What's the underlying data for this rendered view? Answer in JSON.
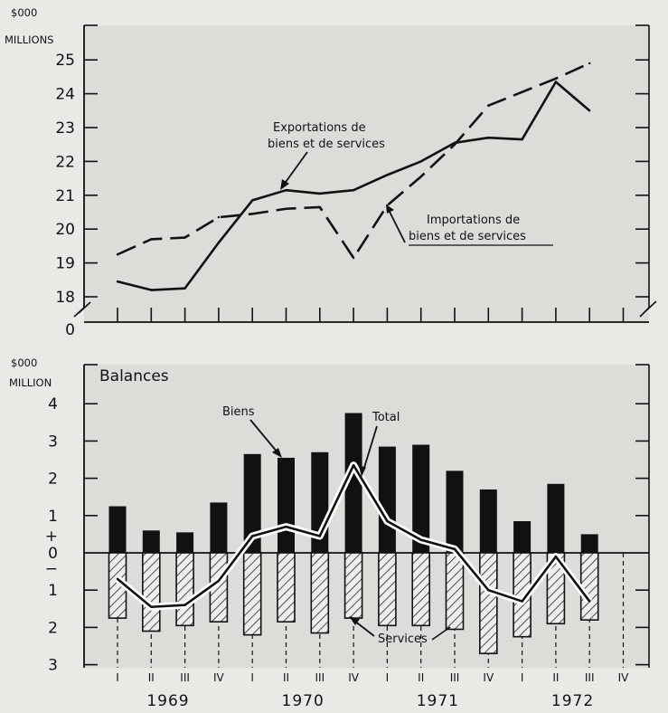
{
  "chart_data": [
    {
      "type": "line",
      "ylabel_line1": "$000",
      "ylabel_line2": "MILLIONS",
      "y_axis_break": true,
      "ylim": [
        18,
        25
      ],
      "y_ticks": [
        "0",
        "18",
        "19",
        "20",
        "21",
        "22",
        "23",
        "24",
        "25"
      ],
      "x": [
        "1969 I",
        "1969 II",
        "1969 III",
        "1969 IV",
        "1970 I",
        "1970 II",
        "1970 III",
        "1970 IV",
        "1971 I",
        "1971 II",
        "1971 III",
        "1971 IV",
        "1972 I",
        "1972 II",
        "1972 III"
      ],
      "series": [
        {
          "name": "Exportations de biens et de services",
          "style": "solid",
          "values": [
            18.45,
            18.2,
            18.25,
            19.6,
            20.85,
            21.15,
            21.05,
            21.15,
            21.6,
            22.0,
            22.55,
            22.7,
            22.65,
            24.35,
            23.5
          ]
        },
        {
          "name": "Importations de biens et de services",
          "style": "dashed",
          "values": [
            19.25,
            19.7,
            19.75,
            20.35,
            20.45,
            20.6,
            20.65,
            19.15,
            20.7,
            21.55,
            22.5,
            23.65,
            24.05,
            24.45,
            24.9
          ]
        }
      ],
      "annotations": {
        "exports_line1": "Exportations de",
        "exports_line2": "biens et de services",
        "imports_line1": "Importations de",
        "imports_line2": "biens et de services"
      }
    },
    {
      "type": "bar",
      "title": "Balances",
      "ylabel_line1": "$000",
      "ylabel_line2": "MILLION",
      "ylim": [
        -3,
        4
      ],
      "y_ticks_positive": [
        "1",
        "2",
        "3",
        "4"
      ],
      "y_ticks_negative": [
        "1",
        "2",
        "3"
      ],
      "zero_label": "0",
      "plus_sign": "+",
      "minus_sign": "−",
      "x": [
        "1969 I",
        "1969 II",
        "1969 III",
        "1969 IV",
        "1970 I",
        "1970 II",
        "1970 III",
        "1970 IV",
        "1971 I",
        "1971 II",
        "1971 III",
        "1971 IV",
        "1972 I",
        "1972 II",
        "1972 III"
      ],
      "series": [
        {
          "name": "Biens",
          "style": "solid bars",
          "values": [
            1.25,
            0.6,
            0.55,
            1.35,
            2.65,
            2.55,
            2.7,
            3.75,
            2.85,
            2.9,
            2.2,
            1.7,
            0.85,
            1.85,
            0.5
          ]
        },
        {
          "name": "Services",
          "style": "hatched bars",
          "values": [
            -1.75,
            -2.1,
            -1.95,
            -1.85,
            -2.2,
            -1.85,
            -2.15,
            -1.75,
            -1.95,
            -1.95,
            -2.05,
            -2.7,
            -2.25,
            -1.9,
            -1.8
          ]
        },
        {
          "name": "Total",
          "style": "line",
          "values": [
            -0.7,
            -1.45,
            -1.4,
            -0.75,
            0.45,
            0.7,
            0.45,
            2.35,
            0.85,
            0.35,
            0.1,
            -1.0,
            -1.3,
            -0.1,
            -1.3
          ]
        }
      ],
      "annotations": {
        "goods": "Biens",
        "total": "Total",
        "services": "Services"
      },
      "quarter_labels": [
        "I",
        "II",
        "III",
        "IV",
        "I",
        "II",
        "III",
        "IV",
        "I",
        "II",
        "III",
        "IV",
        "I",
        "II",
        "III",
        "IV"
      ],
      "years": [
        "1969",
        "1970",
        "1971",
        "1972"
      ]
    }
  ]
}
